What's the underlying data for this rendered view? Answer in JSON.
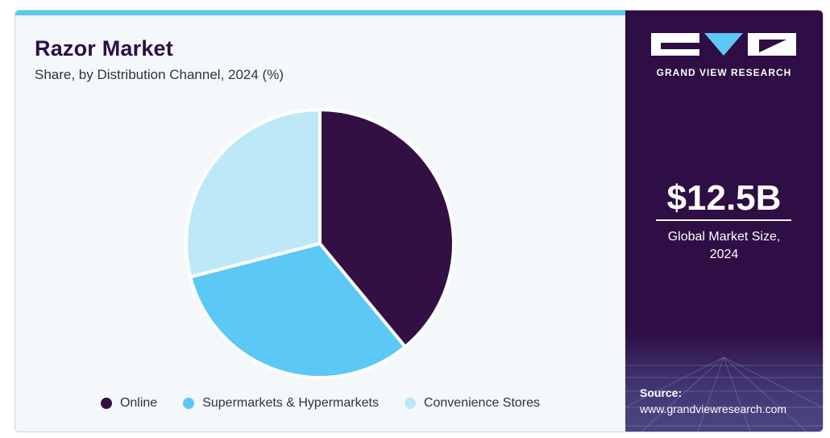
{
  "header": {
    "title": "Razor Market",
    "subtitle": "Share, by Distribution Channel, 2024 (%)"
  },
  "colors": {
    "accent_bar": "#5ac8f4",
    "side_panel": "#2f0d45",
    "online": "#331043",
    "supermarkets": "#5bc8f5",
    "convenience": "#bde8f8"
  },
  "chart_data": {
    "type": "pie",
    "title": "Razor Market",
    "subtitle": "Share, by Distribution Channel, 2024 (%)",
    "categories": [
      "Online",
      "Supermarkets & Hypermarkets",
      "Convenience Stores"
    ],
    "values": [
      39,
      32,
      29
    ],
    "colors": [
      "#331043",
      "#5bc8f5",
      "#bde8f8"
    ],
    "legend_position": "bottom"
  },
  "side_panel": {
    "brand": "GRAND VIEW RESEARCH",
    "market_size": "$12.5B",
    "market_size_label_line1": "Global Market Size,",
    "market_size_label_line2": "2024",
    "source_label": "Source:",
    "source_url": "www.grandviewresearch.com"
  }
}
